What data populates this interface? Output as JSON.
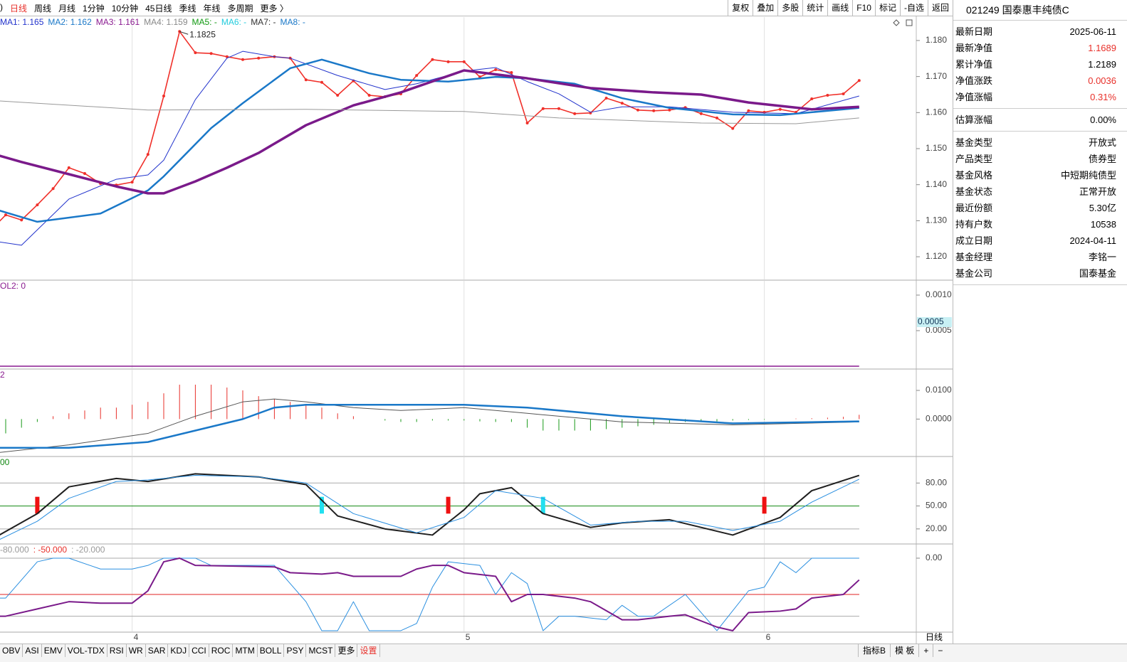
{
  "toolbar": {
    "periods": [
      ")",
      "日线",
      "周线",
      "月线",
      "1分钟",
      "10分钟",
      "45日线",
      "季线",
      "年线",
      "多周期",
      "更多 〉"
    ],
    "active_period": 1,
    "buttons": [
      "复权",
      "叠加",
      "多股",
      "统计",
      "画线",
      "F10",
      "标记",
      "-自选",
      "返回"
    ]
  },
  "info_panel": {
    "title": "021249 国泰惠丰纯债C",
    "groups": [
      [
        {
          "label": "最新日期",
          "value": "2025-06-11"
        },
        {
          "label": "最新净值",
          "value": "1.1689",
          "color": "#e8302a"
        },
        {
          "label": "累计净值",
          "value": "1.2189"
        },
        {
          "label": "净值涨跌",
          "value": "0.0036",
          "color": "#e8302a"
        },
        {
          "label": "净值涨幅",
          "value": "0.31%",
          "color": "#e8302a"
        }
      ],
      [
        {
          "label": "估算涨幅",
          "value": "0.00%"
        }
      ],
      [
        {
          "label": "基金类型",
          "value": "开放式"
        },
        {
          "label": "产品类型",
          "value": "债券型"
        },
        {
          "label": "基金风格",
          "value": "中短期纯债型"
        },
        {
          "label": "基金状态",
          "value": "正常开放"
        },
        {
          "label": "最近份额",
          "value": "5.30亿"
        },
        {
          "label": "持有户数",
          "value": "10538"
        },
        {
          "label": "成立日期",
          "value": "2024-04-11"
        },
        {
          "label": "基金经理",
          "value": "李铭一"
        },
        {
          "label": "基金公司",
          "value": "国泰基金"
        }
      ]
    ]
  },
  "bottom_tabs": [
    "OBV",
    "ASI",
    "EMV",
    "VOL-TDX",
    "RSI",
    "WR",
    "SAR",
    "KDJ",
    "CCI",
    "ROC",
    "MTM",
    "BOLL",
    "PSY",
    "MCST",
    "更多",
    "设置"
  ],
  "active_tab": 15,
  "bottom_right": [
    "指标B",
    "模 板",
    "+",
    "−"
  ],
  "period_label": "日线",
  "chart_data": [
    {
      "type": "line",
      "header": [
        {
          "text": "MA1: 1.165",
          "color": "#2233cc"
        },
        {
          "text": "MA2: 1.162",
          "color": "#1a78c8"
        },
        {
          "text": "MA3: 1.161",
          "color": "#8a1a90"
        },
        {
          "text": "MA4: 1.159",
          "color": "#888888"
        },
        {
          "text": "MA5: -",
          "color": "#119911"
        },
        {
          "text": "MA6: -",
          "color": "#22ccdd"
        },
        {
          "text": "MA7: -",
          "color": "#333333"
        },
        {
          "text": "MA8: -",
          "color": "#1a78c8"
        }
      ],
      "ylim": [
        1.1137,
        1.1865
      ],
      "yticks": [
        {
          "value": 1.18,
          "label": "1.180"
        },
        {
          "value": 1.17,
          "label": "1.170"
        },
        {
          "value": 1.16,
          "label": "1.160"
        },
        {
          "value": 1.15,
          "label": "1.150"
        },
        {
          "value": 1.14,
          "label": "1.140"
        },
        {
          "value": 1.13,
          "label": "1.130"
        },
        {
          "value": 1.12,
          "label": "1.120"
        }
      ],
      "xticks": [
        {
          "value": 9,
          "label": "4"
        },
        {
          "value": 30,
          "label": "5"
        },
        {
          "value": 49,
          "label": "6"
        }
      ],
      "annotation": {
        "label": "1.1825",
        "x": 12,
        "value": 1.1825
      },
      "series": [
        {
          "color": "#f0302a",
          "width": 1.6,
          "markers": true,
          "x": [
            0,
            1,
            2,
            3,
            4,
            5,
            6,
            7,
            8,
            9,
            10,
            11,
            12,
            13,
            14,
            15,
            16,
            17,
            18,
            19,
            20,
            21,
            22,
            23,
            24,
            25,
            26,
            27,
            28,
            29,
            30,
            31,
            32,
            33,
            34,
            35,
            36,
            37,
            38,
            39,
            40,
            41,
            42,
            43,
            44,
            45,
            46,
            47,
            48,
            49,
            50,
            51,
            52,
            53,
            54,
            55
          ],
          "values": [
            1.1271,
            1.1316,
            1.1302,
            1.1344,
            1.1389,
            1.1447,
            1.1431,
            1.1403,
            1.1399,
            1.1407,
            1.1484,
            1.1646,
            1.1825,
            1.1766,
            1.1764,
            1.1755,
            1.1747,
            1.1751,
            1.1755,
            1.1751,
            1.1691,
            1.1684,
            1.1648,
            1.1688,
            1.1648,
            1.1644,
            1.1652,
            1.1703,
            1.1747,
            1.1741,
            1.1741,
            1.1699,
            1.1719,
            1.1711,
            1.1571,
            1.1611,
            1.1611,
            1.1597,
            1.1599,
            1.164,
            1.1626,
            1.1607,
            1.1605,
            1.1607,
            1.1614,
            1.1597,
            1.1585,
            1.1556,
            1.1605,
            1.1601,
            1.1609,
            1.1601,
            1.1638,
            1.1648,
            1.1652,
            1.1689
          ]
        },
        {
          "color": "#2233cc",
          "width": 1,
          "x": [
            0,
            2,
            5,
            8,
            10,
            11,
            13,
            15,
            16,
            18,
            19,
            22,
            25,
            27,
            30,
            32,
            34,
            36,
            38,
            40,
            43,
            47,
            51,
            55
          ],
          "values": [
            1.1245,
            1.1232,
            1.136,
            1.1415,
            1.1427,
            1.1468,
            1.1636,
            1.1751,
            1.177,
            1.1755,
            1.1751,
            1.1703,
            1.1664,
            1.168,
            1.1715,
            1.1725,
            1.1686,
            1.1652,
            1.1601,
            1.1616,
            1.1616,
            1.1601,
            1.1597,
            1.1646
          ]
        },
        {
          "color": "#1a78c8",
          "width": 2.5,
          "x": [
            0,
            3,
            7,
            10,
            11,
            14,
            16,
            19,
            21,
            24,
            26,
            29,
            32,
            34,
            37,
            40,
            43,
            47,
            50,
            55
          ],
          "values": [
            1.1336,
            1.1297,
            1.132,
            1.1384,
            1.1423,
            1.1557,
            1.1626,
            1.1723,
            1.1747,
            1.1709,
            1.1691,
            1.1686,
            1.1699,
            1.1695,
            1.168,
            1.164,
            1.1613,
            1.1595,
            1.1593,
            1.1613
          ]
        },
        {
          "color": "#7a1a8a",
          "width": 3.5,
          "x": [
            0,
            2,
            5,
            8,
            10,
            11,
            13,
            15,
            17,
            20,
            23,
            26,
            30,
            34,
            38,
            42,
            45,
            48,
            52,
            55
          ],
          "values": [
            1.1488,
            1.1463,
            1.1429,
            1.1395,
            1.1376,
            1.1376,
            1.1409,
            1.1447,
            1.1488,
            1.1565,
            1.162,
            1.1656,
            1.1717,
            1.1695,
            1.1668,
            1.1656,
            1.165,
            1.1628,
            1.1609,
            1.1616
          ]
        },
        {
          "color": "#999999",
          "width": 1,
          "x": [
            0,
            10,
            20,
            30,
            36,
            45,
            51,
            55
          ],
          "values": [
            1.1634,
            1.1607,
            1.1609,
            1.1603,
            1.1585,
            1.1571,
            1.1569,
            1.1585
          ]
        }
      ]
    },
    {
      "type": "line",
      "header": [
        {
          "text": "OL2: 0",
          "color": "#8a1a90"
        }
      ],
      "ylim": [
        -3e-05,
        0.0012
      ],
      "yticks": [
        {
          "value": 0.001,
          "label": "0.0010"
        },
        {
          "value": 0.0005,
          "label": "0.0005"
        }
      ],
      "cursor_label": "0.0005",
      "series": [
        {
          "color": "#8a1a90",
          "width": 1.5,
          "x": [
            0,
            55
          ],
          "values": [
            0,
            0
          ]
        }
      ]
    },
    {
      "type": "line",
      "header": [
        {
          "text": "2",
          "color": "#8a1a90"
        }
      ],
      "ylim": [
        -0.0128,
        0.0172
      ],
      "yticks": [
        {
          "value": 0.01,
          "label": "0.0100"
        },
        {
          "value": 0,
          "label": "0.0000"
        }
      ],
      "bars": {
        "x": [
          0,
          1,
          2,
          3,
          4,
          5,
          6,
          7,
          8,
          9,
          10,
          11,
          12,
          13,
          14,
          15,
          16,
          17,
          18,
          19,
          20,
          21,
          22,
          23,
          24,
          25,
          26,
          27,
          28,
          29,
          30,
          31,
          32,
          33,
          34,
          35,
          36,
          37,
          38,
          39,
          40,
          41,
          42,
          43,
          44,
          45,
          46,
          47,
          48,
          49,
          50,
          51,
          52,
          53,
          54,
          55
        ],
        "values": [
          -0.005,
          -0.005,
          -0.003,
          -0.001,
          0.001,
          0.002,
          0.003,
          0.004,
          0.004,
          0.005,
          0.006,
          0.009,
          0.012,
          0.012,
          0.012,
          0.011,
          0.01,
          0.008,
          0.007,
          0.006,
          0.005,
          0.004,
          0.002,
          0.001,
          0,
          -0.0005,
          -0.001,
          -0.001,
          -0.0005,
          -0.0005,
          -0.0005,
          -0.0008,
          -0.001,
          -0.001,
          -0.003,
          -0.004,
          -0.004,
          -0.004,
          -0.004,
          -0.0035,
          -0.003,
          -0.0025,
          -0.002,
          -0.0015,
          -0.001,
          -0.001,
          -0.0008,
          -0.0005,
          -0.0003,
          -0.0002,
          0,
          0.0002,
          0.0003,
          0.0005,
          0.0008,
          0.0015
        ]
      },
      "series": [
        {
          "color": "#555555",
          "width": 1,
          "x": [
            0,
            5,
            10,
            13,
            16,
            18,
            20,
            23,
            26,
            30,
            34,
            40,
            47,
            55
          ],
          "values": [
            -0.012,
            -0.009,
            -0.005,
            0.001,
            0.006,
            0.007,
            0.006,
            0.004,
            0.003,
            0.004,
            0.002,
            -0.001,
            -0.002,
            -0.001
          ]
        },
        {
          "color": "#1a78c8",
          "width": 2.5,
          "x": [
            0,
            5,
            10,
            13,
            16,
            18,
            20,
            25,
            30,
            34,
            40,
            47,
            55
          ],
          "values": [
            -0.01,
            -0.01,
            -0.008,
            -0.004,
            0,
            0.004,
            0.005,
            0.005,
            0.005,
            0.004,
            0.001,
            -0.0015,
            -0.0008
          ]
        }
      ]
    },
    {
      "type": "line",
      "header": [
        {
          "text": "00",
          "color": "#118811"
        }
      ],
      "ylim": [
        1.25,
        113.75
      ],
      "yticks": [
        {
          "value": 80,
          "label": "80.00"
        },
        {
          "value": 50,
          "label": "50.00"
        },
        {
          "value": 20,
          "label": "20.00"
        }
      ],
      "tick_line_colors": [
        "#aaaaaa",
        "#118811",
        "#aaaaaa"
      ],
      "signals": [
        {
          "x": 3,
          "color": "#ee1111"
        },
        {
          "x": 21,
          "color": "#22e0f0"
        },
        {
          "x": 29,
          "color": "#ee1111"
        },
        {
          "x": 35,
          "color": "#22e0f0"
        },
        {
          "x": 49,
          "color": "#ee1111"
        }
      ],
      "series": [
        {
          "color": "#1f1f1f",
          "width": 2,
          "x": [
            0,
            3,
            5,
            8,
            10,
            13,
            17,
            20,
            22,
            25,
            28,
            30,
            31,
            33,
            35,
            38,
            40,
            43,
            47,
            50,
            52,
            55
          ],
          "values": [
            5,
            40,
            75,
            86,
            82,
            92,
            88,
            78,
            37,
            20,
            12,
            45,
            66,
            74,
            40,
            22,
            28,
            32,
            12,
            35,
            70,
            90
          ]
        },
        {
          "color": "#2a8fe0",
          "width": 1,
          "x": [
            0,
            3,
            5,
            8,
            10,
            13,
            17,
            20,
            23,
            27,
            30,
            32,
            35,
            38,
            41,
            44,
            47,
            50,
            52,
            55
          ],
          "values": [
            0,
            30,
            60,
            82,
            84,
            90,
            88,
            80,
            40,
            15,
            35,
            70,
            60,
            25,
            30,
            30,
            18,
            30,
            55,
            85
          ]
        }
      ]
    },
    {
      "type": "line",
      "header": [
        {
          "text": "-80.000",
          "color": "#999999"
        },
        {
          "text": ": -50.000",
          "color": "#e8302a"
        },
        {
          "text": ": -20.000",
          "color": "#999999"
        }
      ],
      "ylim": [
        -101,
        18.6
      ],
      "yticks": [
        {
          "value": 0,
          "label": "0.00"
        }
      ],
      "levels": [
        {
          "value": 0,
          "color": "#aaaaaa"
        },
        {
          "value": -50,
          "color": "#e02020"
        },
        {
          "value": -80,
          "color": "#aaaaaa"
        }
      ],
      "series": [
        {
          "color": "#2a8fe0",
          "width": 1,
          "x": [
            0,
            1,
            2,
            3,
            4,
            5,
            7,
            9,
            10,
            11,
            13,
            14,
            18,
            20,
            21,
            22,
            23,
            24,
            26,
            27,
            28,
            29,
            31,
            32,
            33,
            34,
            35,
            36,
            37,
            39,
            40,
            41,
            42,
            44,
            46,
            48,
            49,
            50,
            51,
            52,
            55
          ],
          "values": [
            -55,
            -55,
            -30,
            -5,
            0,
            0,
            -15,
            -15,
            -10,
            0,
            0,
            -10,
            -10,
            -60,
            -100,
            -100,
            -60,
            -100,
            -100,
            -90,
            -40,
            -5,
            -10,
            -50,
            -20,
            -35,
            -100,
            -80,
            -80,
            -85,
            -65,
            -80,
            -80,
            -50,
            -100,
            -45,
            -40,
            -5,
            -20,
            0,
            0
          ]
        },
        {
          "color": "#7a1a8a",
          "width": 2,
          "x": [
            0,
            1,
            3,
            5,
            7,
            9,
            10,
            11,
            12,
            13,
            18,
            19,
            21,
            22,
            23,
            26,
            27,
            28,
            29,
            30,
            32,
            33,
            34,
            35,
            37,
            38,
            40,
            41,
            43,
            44,
            46,
            47,
            48,
            50,
            51,
            52,
            54,
            55
          ],
          "values": [
            -80,
            -80,
            -70,
            -60,
            -62,
            -62,
            -45,
            -5,
            0,
            -10,
            -12,
            -20,
            -22,
            -20,
            -25,
            -25,
            -15,
            -10,
            -10,
            -20,
            -25,
            -60,
            -50,
            -50,
            -55,
            -60,
            -85,
            -85,
            -80,
            -78,
            -95,
            -100,
            -75,
            -73,
            -70,
            -55,
            -50,
            -30
          ]
        }
      ]
    }
  ]
}
